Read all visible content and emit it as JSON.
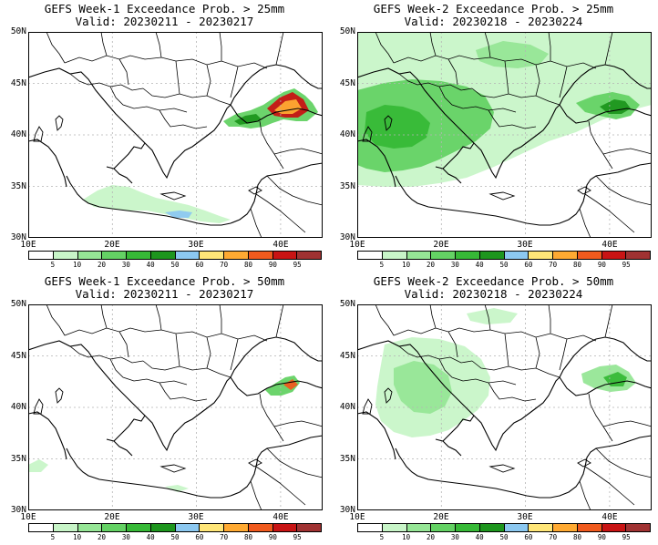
{
  "panels": [
    {
      "title": "GEFS Week-1 Exceedance Prob. > 25mm",
      "valid": "Valid: 20230211 - 20230217"
    },
    {
      "title": "GEFS Week-2 Exceedance Prob. > 25mm",
      "valid": "Valid: 20230218 - 20230224"
    },
    {
      "title": "GEFS Week-1 Exceedance Prob. > 50mm",
      "valid": "Valid: 20230211 - 20230217"
    },
    {
      "title": "GEFS Week-2 Exceedance Prob. > 50mm",
      "valid": "Valid: 20230218 - 20230224"
    }
  ],
  "axes": {
    "lat_labels": [
      "50N",
      "45N",
      "40N",
      "35N",
      "30N"
    ],
    "lon_labels": [
      "10E",
      "20E",
      "30E",
      "40E"
    ]
  },
  "colorbar": {
    "labels": [
      "5",
      "10",
      "20",
      "30",
      "40",
      "50",
      "60",
      "70",
      "80",
      "90",
      "95"
    ],
    "colors": [
      "#ffffff",
      "#c8f5c8",
      "#96e696",
      "#64d264",
      "#37b937",
      "#1e961e",
      "#8cc8f0",
      "#ffe678",
      "#ffaa32",
      "#f05a1e",
      "#c81414",
      "#a03232"
    ]
  }
}
